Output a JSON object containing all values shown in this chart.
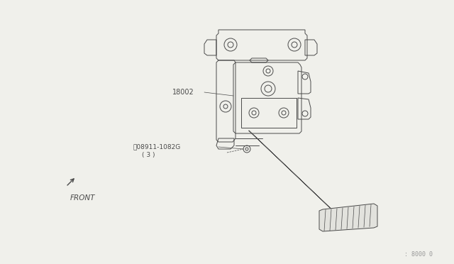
{
  "bg_color": "#f0f0eb",
  "line_color": "#4a4a4a",
  "text_color": "#4a4a4a",
  "watermark": ": 8000 0",
  "label_18002": "18002",
  "label_bolt": "ⓝ08911-1082G",
  "label_bolt2": "( 3 )",
  "label_front": "FRONT",
  "figsize": [
    6.4,
    3.72
  ],
  "dpi": 100
}
